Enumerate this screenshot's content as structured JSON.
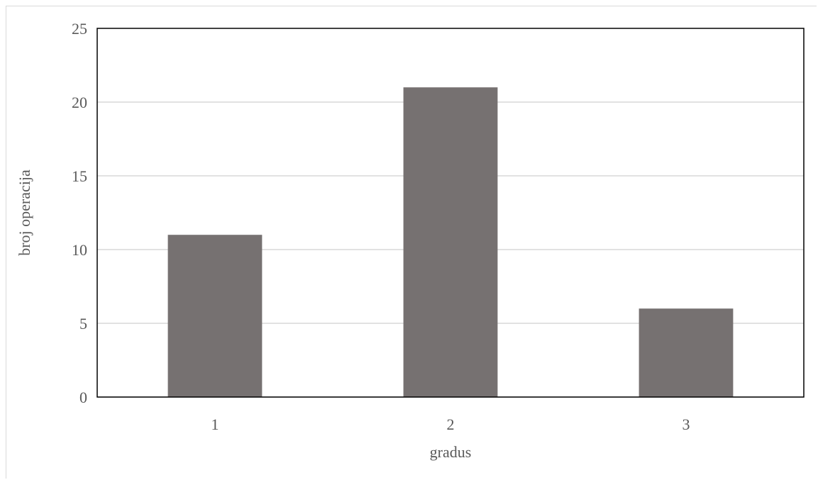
{
  "chart_data": {
    "type": "bar",
    "categories": [
      "1",
      "2",
      "3"
    ],
    "values": [
      11,
      21,
      6
    ],
    "title": "",
    "xlabel": "gradus",
    "ylabel": "broj operacija",
    "ylim": [
      0,
      25
    ],
    "yticks": [
      "0",
      "5",
      "10",
      "15",
      "20",
      "25"
    ],
    "grid": true,
    "legend": "none",
    "bar_color": "#767171",
    "gridline_color": "#d9d9d9",
    "axis_color": "#000000"
  }
}
